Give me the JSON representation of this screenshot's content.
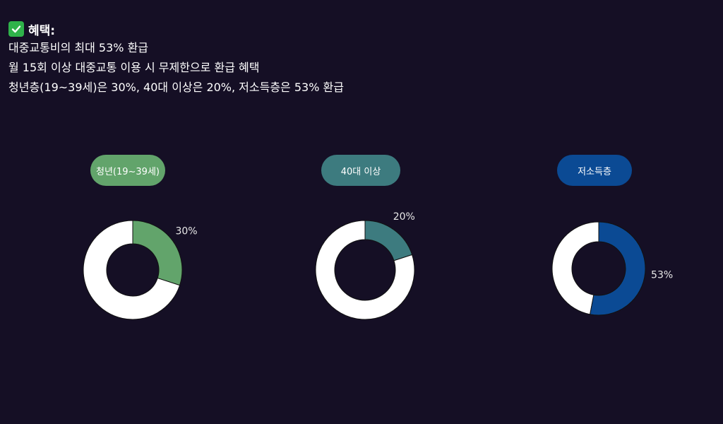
{
  "header": {
    "title": "혜택:",
    "lines": [
      "대중교통비의 최대 53% 환급",
      "월 15회 이상 대중교통 이용 시 무제한으로 환급 혜택",
      "청년층(19~39세)은 30%, 40대 이상은 20%, 저소득층은 53% 환급"
    ]
  },
  "chart_data": {
    "type": "pie",
    "variant": "donut",
    "series": [
      {
        "name": "청년(19~39세)",
        "value": 30,
        "label": "30%",
        "color": "#62a46b"
      },
      {
        "name": "40대 이상",
        "value": 20,
        "label": "20%",
        "color": "#3d7b7f"
      },
      {
        "name": "저소득층",
        "value": 53,
        "label": "53%",
        "color": "#0b4a94"
      }
    ],
    "remainder_color": "#ffffff"
  }
}
